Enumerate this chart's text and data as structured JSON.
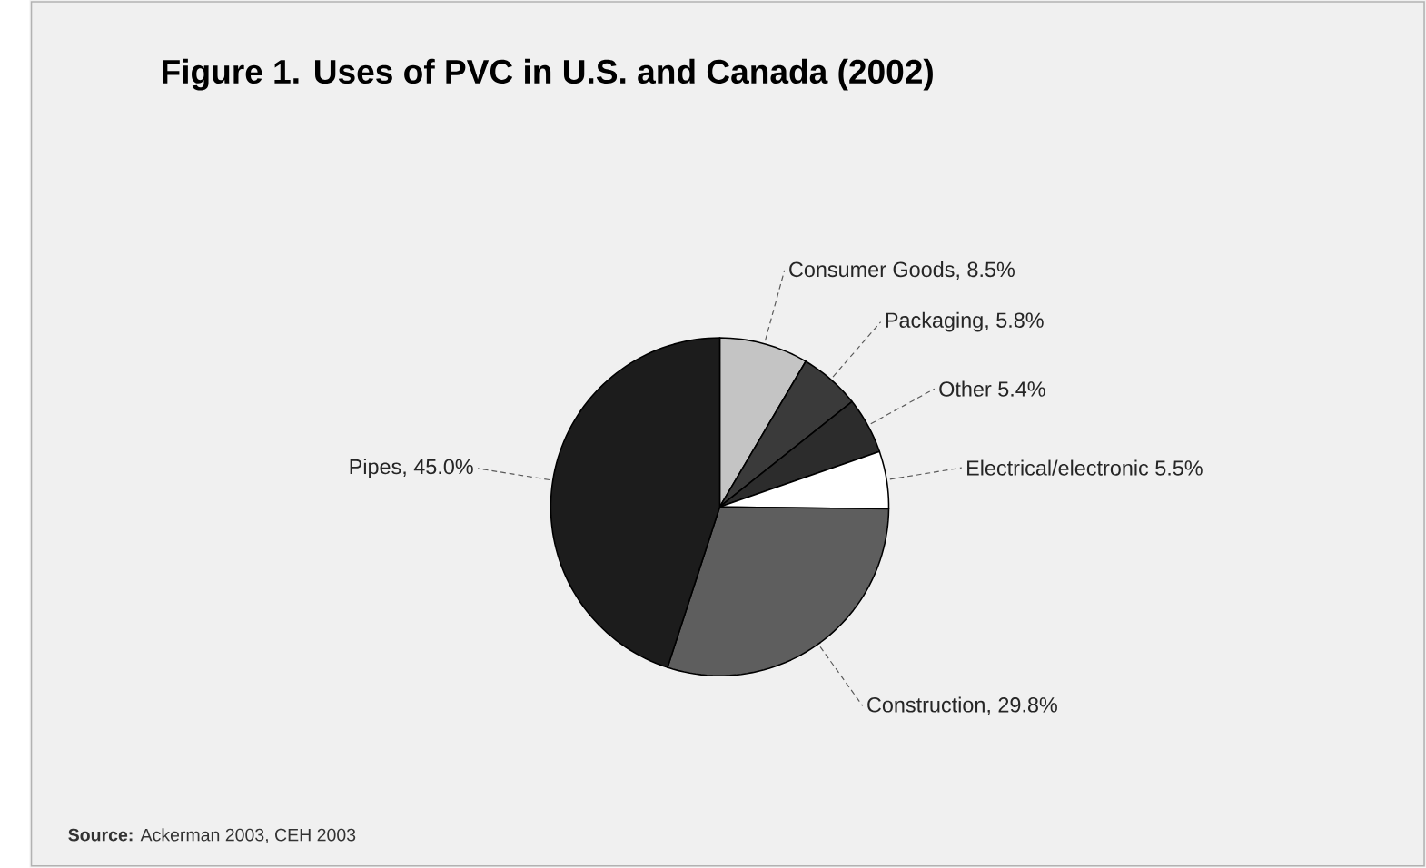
{
  "chart_data": {
    "type": "pie",
    "title": "Figure 1. Uses of PVC in U.S. and Canada (2002)",
    "categories": [
      "Consumer Goods, 8.5%",
      "Packaging, 5.8%",
      "Other 5.4%",
      "Electrical/electronic 5.5%",
      "Construction, 29.8%",
      "Pipes, 45.0%"
    ],
    "values": [
      8.5,
      5.8,
      5.4,
      5.5,
      29.8,
      45.0
    ],
    "colors": [
      "#c4c4c4",
      "#3a3a3a",
      "#2c2c2c",
      "#ffffff",
      "#5e5e5e",
      "#1c1c1c"
    ],
    "annotations": [
      "**Source:** Ackerman 2003, CEH 2003"
    ]
  }
}
